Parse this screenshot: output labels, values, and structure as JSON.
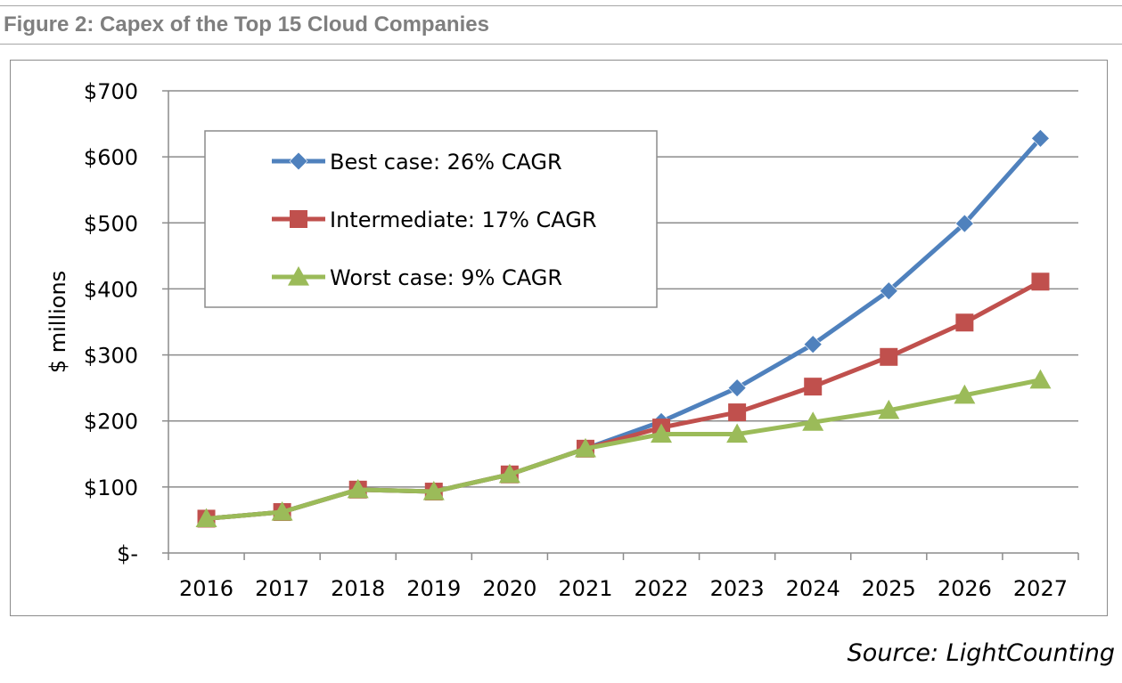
{
  "figure_title": "Figure 2: Capex of the Top 15 Cloud Companies",
  "source": "Source: LightCounting",
  "colors": {
    "best": "#4f81bd",
    "intermediate": "#c0504d",
    "worst": "#9bbb59",
    "grid": "#8c8c8c",
    "title": "#7f7f7f"
  },
  "chart_data": {
    "type": "line",
    "title": "",
    "xlabel": "",
    "ylabel": "$ millions",
    "ylim": [
      0,
      700
    ],
    "yticks": [
      0,
      100,
      200,
      300,
      400,
      500,
      600,
      700
    ],
    "ytick_labels": [
      "$-",
      "$100",
      "$200",
      "$300",
      "$400",
      "$500",
      "$600",
      "$700"
    ],
    "grid": true,
    "legend_position": "top-left",
    "x": [
      "2016",
      "2017",
      "2018",
      "2019",
      "2020",
      "2021",
      "2022",
      "2023",
      "2024",
      "2025",
      "2026",
      "2027"
    ],
    "series": [
      {
        "name": "Best case: 26% CAGR",
        "marker": "diamond",
        "color": "#4f81bd",
        "values": [
          52,
          62,
          96,
          93,
          119,
          158,
          199,
          250,
          316,
          397,
          499,
          628
        ]
      },
      {
        "name": "Intermediate: 17% CAGR",
        "marker": "square",
        "color": "#c0504d",
        "values": [
          52,
          62,
          96,
          93,
          119,
          158,
          190,
          213,
          252,
          297,
          349,
          411
        ]
      },
      {
        "name": "Worst case: 9% CAGR",
        "marker": "triangle",
        "color": "#9bbb59",
        "values": [
          52,
          62,
          96,
          93,
          119,
          158,
          180,
          180,
          198,
          216,
          239,
          262
        ]
      }
    ]
  }
}
